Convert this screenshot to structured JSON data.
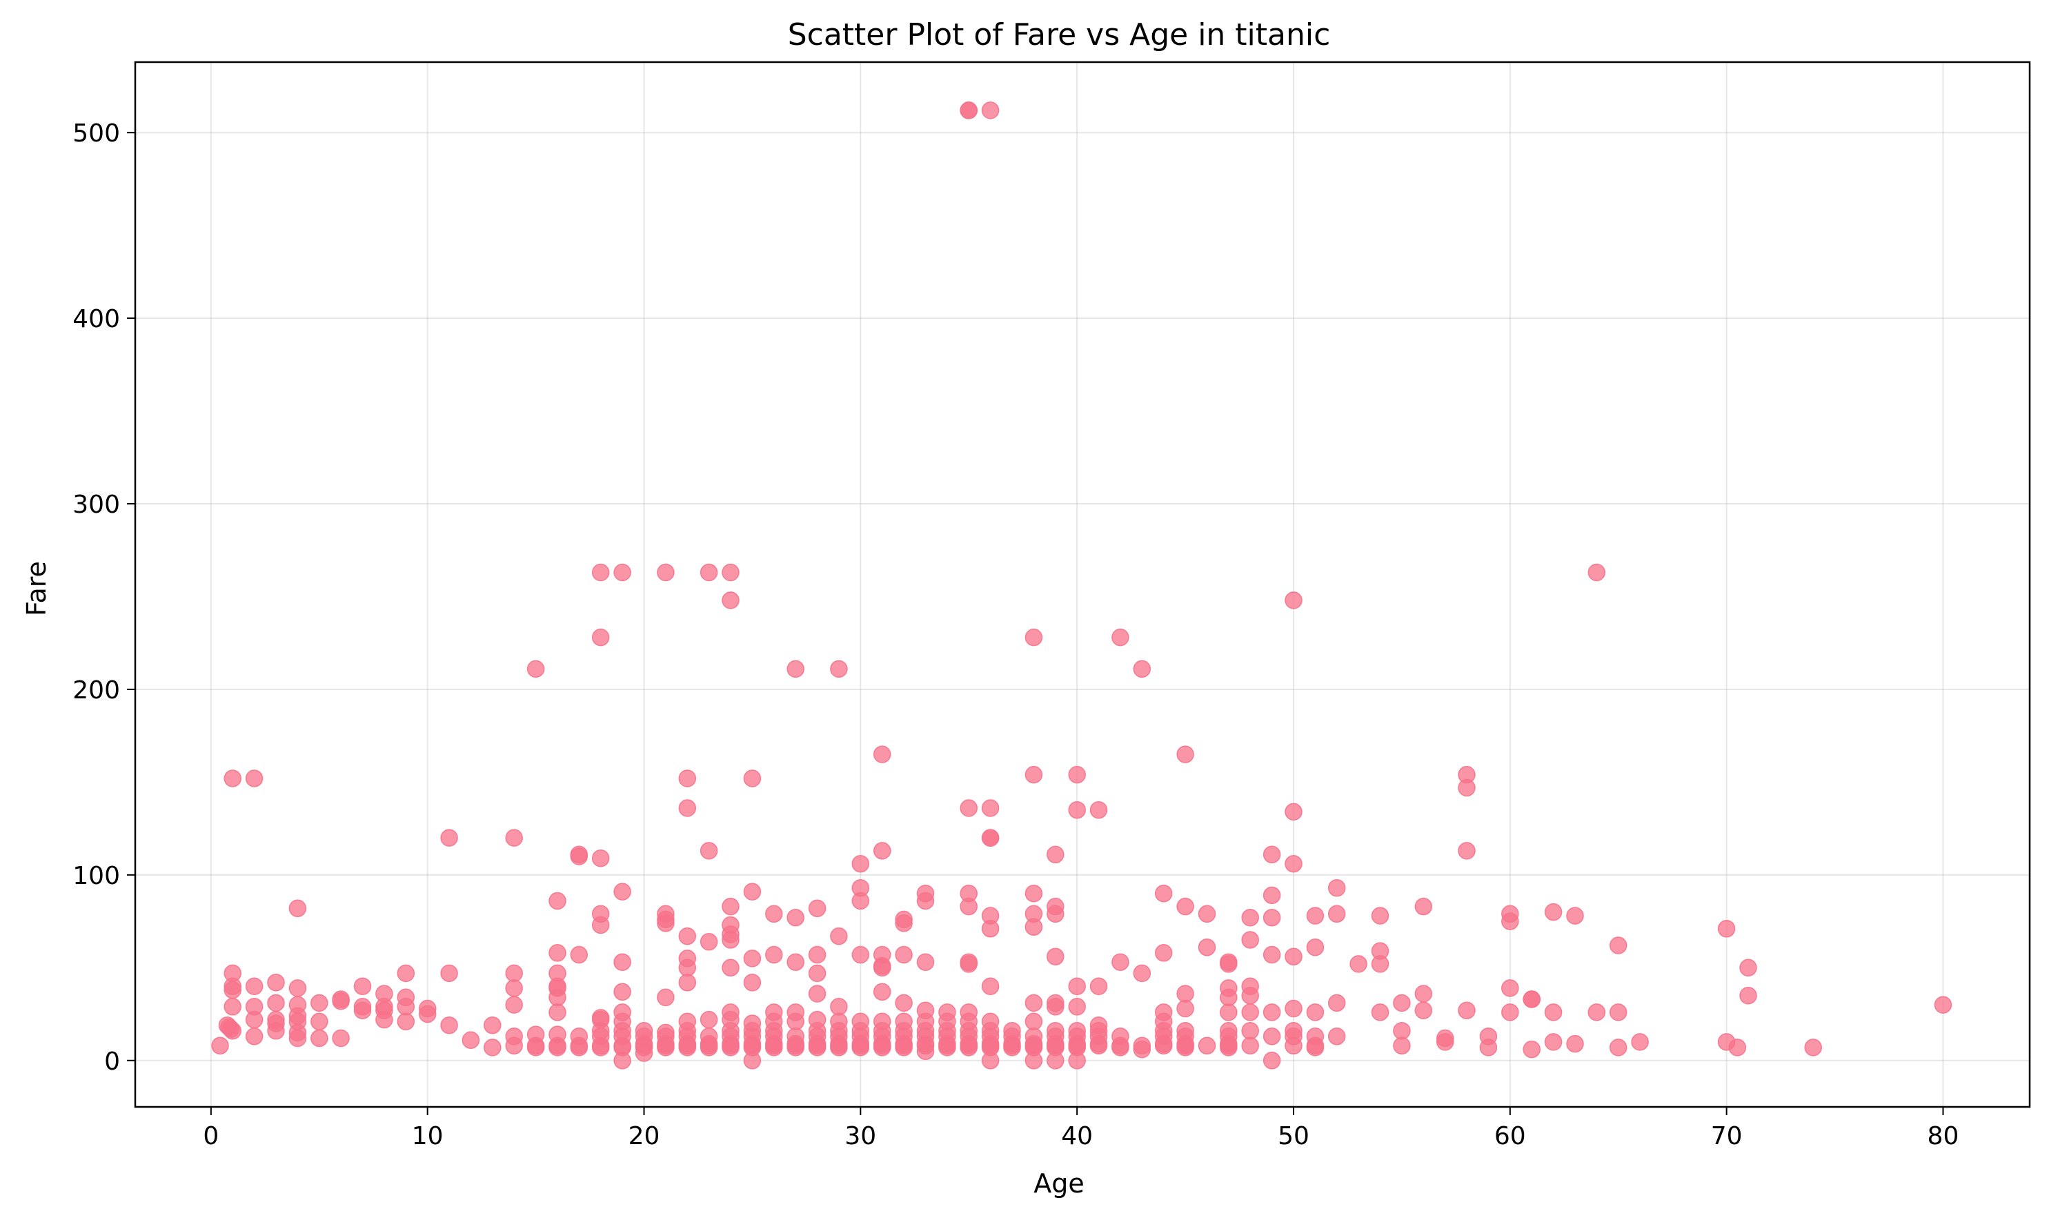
{
  "chart_data": {
    "type": "scatter",
    "title": "Scatter Plot of Fare vs Age in titanic",
    "xlabel": "Age",
    "ylabel": "Fare",
    "xlim": [
      -3.5,
      84
    ],
    "ylim": [
      -25,
      538
    ],
    "x_ticks": [
      0,
      10,
      20,
      30,
      40,
      50,
      60,
      70,
      80
    ],
    "y_ticks": [
      0,
      100,
      200,
      300,
      400,
      500
    ],
    "grid": true,
    "legend": "none",
    "marker_color": "#f77189",
    "marker_opacity": 0.75,
    "points": [
      [
        35,
        512
      ],
      [
        35,
        512
      ],
      [
        36,
        512
      ],
      [
        18,
        263
      ],
      [
        19,
        263
      ],
      [
        21,
        263
      ],
      [
        23,
        263
      ],
      [
        24,
        263
      ],
      [
        64,
        263
      ],
      [
        24,
        248
      ],
      [
        50,
        248
      ],
      [
        18,
        228
      ],
      [
        38,
        228
      ],
      [
        42,
        228
      ],
      [
        15,
        211
      ],
      [
        27,
        211
      ],
      [
        29,
        211
      ],
      [
        43,
        211
      ],
      [
        31,
        165
      ],
      [
        45,
        165
      ],
      [
        1,
        152
      ],
      [
        2,
        152
      ],
      [
        22,
        152
      ],
      [
        25,
        152
      ],
      [
        38,
        154
      ],
      [
        40,
        154
      ],
      [
        58,
        154
      ],
      [
        58,
        147
      ],
      [
        22,
        136
      ],
      [
        35,
        136
      ],
      [
        36,
        136
      ],
      [
        40,
        135
      ],
      [
        41,
        135
      ],
      [
        50,
        134
      ],
      [
        11,
        120
      ],
      [
        14,
        120
      ],
      [
        36,
        120
      ],
      [
        36,
        120
      ],
      [
        23,
        113
      ],
      [
        31,
        113
      ],
      [
        58,
        113
      ],
      [
        17,
        111
      ],
      [
        17,
        110
      ],
      [
        18,
        109
      ],
      [
        39,
        111
      ],
      [
        49,
        111
      ],
      [
        30,
        106
      ],
      [
        50,
        106
      ],
      [
        52,
        93
      ],
      [
        30,
        93
      ],
      [
        19,
        91
      ],
      [
        25,
        91
      ],
      [
        39,
        83
      ],
      [
        44,
        90
      ],
      [
        38,
        90
      ],
      [
        33,
        90
      ],
      [
        35,
        90
      ],
      [
        49,
        89
      ],
      [
        30,
        86
      ],
      [
        33,
        86
      ],
      [
        16,
        86
      ],
      [
        4,
        82
      ],
      [
        28,
        82
      ],
      [
        24,
        83
      ],
      [
        35,
        83
      ],
      [
        45,
        83
      ],
      [
        56,
        83
      ],
      [
        18,
        79
      ],
      [
        21,
        79
      ],
      [
        26,
        79
      ],
      [
        38,
        79
      ],
      [
        46,
        79
      ],
      [
        52,
        79
      ],
      [
        60,
        79
      ],
      [
        62,
        80
      ],
      [
        63,
        78
      ],
      [
        39,
        79
      ],
      [
        54,
        78
      ],
      [
        51,
        78
      ],
      [
        48,
        77
      ],
      [
        49,
        77
      ],
      [
        27,
        77
      ],
      [
        32,
        76
      ],
      [
        36,
        78
      ],
      [
        60,
        75
      ],
      [
        21,
        76
      ],
      [
        21,
        74
      ],
      [
        32,
        74
      ],
      [
        18,
        73
      ],
      [
        24,
        73
      ],
      [
        38,
        72
      ],
      [
        36,
        71
      ],
      [
        70,
        71
      ],
      [
        24,
        68
      ],
      [
        24,
        65
      ],
      [
        29,
        67
      ],
      [
        22,
        67
      ],
      [
        48,
        65
      ],
      [
        23,
        64
      ],
      [
        65,
        62
      ],
      [
        46,
        61
      ],
      [
        51,
        61
      ],
      [
        44,
        58
      ],
      [
        16,
        58
      ],
      [
        17,
        57
      ],
      [
        26,
        57
      ],
      [
        28,
        57
      ],
      [
        30,
        57
      ],
      [
        31,
        57
      ],
      [
        32,
        57
      ],
      [
        39,
        56
      ],
      [
        49,
        57
      ],
      [
        50,
        56
      ],
      [
        22,
        55
      ],
      [
        25,
        55
      ],
      [
        54,
        59
      ],
      [
        35,
        53
      ],
      [
        35,
        52
      ],
      [
        19,
        53
      ],
      [
        27,
        53
      ],
      [
        33,
        53
      ],
      [
        42,
        53
      ],
      [
        47,
        53
      ],
      [
        47,
        52
      ],
      [
        53,
        52
      ],
      [
        54,
        52
      ],
      [
        31,
        51
      ],
      [
        31,
        50
      ],
      [
        22,
        50
      ],
      [
        24,
        50
      ],
      [
        71,
        50
      ],
      [
        1,
        47
      ],
      [
        9,
        47
      ],
      [
        11,
        47
      ],
      [
        14,
        47
      ],
      [
        16,
        47
      ],
      [
        28,
        47
      ],
      [
        43,
        47
      ],
      [
        22,
        42
      ],
      [
        25,
        42
      ],
      [
        3,
        42
      ],
      [
        45,
        36
      ],
      [
        55,
        31
      ],
      [
        7,
        40
      ],
      [
        2,
        40
      ],
      [
        1,
        40
      ],
      [
        1,
        38
      ],
      [
        4,
        39
      ],
      [
        14,
        39
      ],
      [
        16,
        39
      ],
      [
        16,
        40
      ],
      [
        36,
        40
      ],
      [
        40,
        40
      ],
      [
        41,
        40
      ],
      [
        47,
        39
      ],
      [
        48,
        40
      ],
      [
        60,
        39
      ],
      [
        8,
        36
      ],
      [
        9,
        34
      ],
      [
        16,
        34
      ],
      [
        19,
        37
      ],
      [
        21,
        34
      ],
      [
        28,
        36
      ],
      [
        47,
        34
      ],
      [
        31,
        37
      ],
      [
        48,
        35
      ],
      [
        56,
        36
      ],
      [
        71,
        35
      ],
      [
        1,
        29
      ],
      [
        2,
        29
      ],
      [
        3,
        31
      ],
      [
        4,
        30
      ],
      [
        5,
        31
      ],
      [
        6,
        33
      ],
      [
        6,
        32
      ],
      [
        7,
        29
      ],
      [
        7,
        27
      ],
      [
        8,
        29
      ],
      [
        8,
        27
      ],
      [
        9,
        29
      ],
      [
        10,
        28
      ],
      [
        10,
        25
      ],
      [
        14,
        30
      ],
      [
        16,
        26
      ],
      [
        19,
        26
      ],
      [
        24,
        26
      ],
      [
        26,
        26
      ],
      [
        27,
        26
      ],
      [
        29,
        29
      ],
      [
        32,
        31
      ],
      [
        33,
        27
      ],
      [
        34,
        26
      ],
      [
        35,
        26
      ],
      [
        38,
        31
      ],
      [
        39,
        31
      ],
      [
        39,
        29
      ],
      [
        40,
        29
      ],
      [
        44,
        26
      ],
      [
        45,
        28
      ],
      [
        47,
        26
      ],
      [
        48,
        26
      ],
      [
        49,
        26
      ],
      [
        50,
        28
      ],
      [
        51,
        26
      ],
      [
        52,
        31
      ],
      [
        54,
        26
      ],
      [
        56,
        27
      ],
      [
        58,
        27
      ],
      [
        60,
        26
      ],
      [
        61,
        33
      ],
      [
        62,
        26
      ],
      [
        64,
        26
      ],
      [
        65,
        26
      ],
      [
        80,
        30
      ],
      [
        2,
        22
      ],
      [
        3,
        22
      ],
      [
        3,
        20
      ],
      [
        4,
        24
      ],
      [
        4,
        21
      ],
      [
        5,
        21
      ],
      [
        8,
        22
      ],
      [
        9,
        21
      ],
      [
        11,
        19
      ],
      [
        13,
        19
      ],
      [
        18,
        23
      ],
      [
        18,
        22
      ],
      [
        19,
        21
      ],
      [
        21,
        15
      ],
      [
        22,
        21
      ],
      [
        23,
        22
      ],
      [
        24,
        22
      ],
      [
        25,
        20
      ],
      [
        26,
        21
      ],
      [
        27,
        21
      ],
      [
        28,
        22
      ],
      [
        29,
        21
      ],
      [
        30,
        21
      ],
      [
        31,
        21
      ],
      [
        32,
        21
      ],
      [
        33,
        21
      ],
      [
        34,
        21
      ],
      [
        35,
        21
      ],
      [
        36,
        21
      ],
      [
        38,
        21
      ],
      [
        41,
        19
      ],
      [
        44,
        21
      ],
      [
        47,
        16
      ],
      [
        48,
        16
      ],
      [
        50,
        16
      ],
      [
        55,
        16
      ],
      [
        61,
        33
      ],
      [
        1,
        16
      ],
      [
        2,
        13
      ],
      [
        3,
        16
      ],
      [
        4,
        15
      ],
      [
        4,
        12
      ],
      [
        5,
        12
      ],
      [
        6,
        12
      ],
      [
        0.75,
        19
      ],
      [
        0.83,
        18
      ],
      [
        0.92,
        17
      ],
      [
        12,
        11
      ],
      [
        14,
        13
      ],
      [
        15,
        14
      ],
      [
        16,
        14
      ],
      [
        17,
        13
      ],
      [
        18,
        13
      ],
      [
        19,
        13
      ],
      [
        20,
        13
      ],
      [
        21,
        13
      ],
      [
        22,
        13
      ],
      [
        23,
        13
      ],
      [
        24,
        13
      ],
      [
        25,
        13
      ],
      [
        26,
        13
      ],
      [
        27,
        13
      ],
      [
        28,
        13
      ],
      [
        29,
        13
      ],
      [
        30,
        13
      ],
      [
        31,
        13
      ],
      [
        32,
        13
      ],
      [
        33,
        13
      ],
      [
        34,
        13
      ],
      [
        35,
        13
      ],
      [
        36,
        13
      ],
      [
        37,
        13
      ],
      [
        38,
        13
      ],
      [
        39,
        13
      ],
      [
        40,
        13
      ],
      [
        41,
        13
      ],
      [
        42,
        13
      ],
      [
        44,
        13
      ],
      [
        45,
        13
      ],
      [
        47,
        13
      ],
      [
        49,
        13
      ],
      [
        50,
        13
      ],
      [
        51,
        13
      ],
      [
        52,
        13
      ],
      [
        57,
        12
      ],
      [
        59,
        13
      ],
      [
        62,
        10
      ],
      [
        63,
        9
      ],
      [
        66,
        10
      ],
      [
        70,
        10
      ],
      [
        0.42,
        8
      ],
      [
        13,
        7
      ],
      [
        14,
        8
      ],
      [
        15,
        8
      ],
      [
        16,
        8
      ],
      [
        17,
        8
      ],
      [
        18,
        8
      ],
      [
        19,
        8
      ],
      [
        20,
        8
      ],
      [
        21,
        8
      ],
      [
        22,
        8
      ],
      [
        23,
        8
      ],
      [
        24,
        8
      ],
      [
        25,
        8
      ],
      [
        26,
        8
      ],
      [
        27,
        8
      ],
      [
        28,
        8
      ],
      [
        29,
        8
      ],
      [
        30,
        8
      ],
      [
        31,
        8
      ],
      [
        32,
        8
      ],
      [
        33,
        8
      ],
      [
        34,
        8
      ],
      [
        35,
        8
      ],
      [
        36,
        8
      ],
      [
        37,
        8
      ],
      [
        38,
        8
      ],
      [
        39,
        8
      ],
      [
        40,
        8
      ],
      [
        41,
        8
      ],
      [
        42,
        8
      ],
      [
        43,
        8
      ],
      [
        44,
        8
      ],
      [
        45,
        8
      ],
      [
        46,
        8
      ],
      [
        47,
        8
      ],
      [
        48,
        8
      ],
      [
        50,
        8
      ],
      [
        51,
        8
      ],
      [
        55,
        8
      ],
      [
        57,
        10
      ],
      [
        59,
        7
      ],
      [
        61,
        6
      ],
      [
        65,
        7
      ],
      [
        70.5,
        7
      ],
      [
        74,
        7
      ],
      [
        15,
        7
      ],
      [
        16,
        7
      ],
      [
        17,
        7
      ],
      [
        18,
        7
      ],
      [
        19,
        7
      ],
      [
        20,
        7
      ],
      [
        21,
        7
      ],
      [
        22,
        7
      ],
      [
        23,
        7
      ],
      [
        24,
        7
      ],
      [
        25,
        7
      ],
      [
        26,
        7
      ],
      [
        27,
        7
      ],
      [
        28,
        7
      ],
      [
        29,
        7
      ],
      [
        30,
        7
      ],
      [
        31,
        7
      ],
      [
        32,
        7
      ],
      [
        33,
        5
      ],
      [
        34,
        7
      ],
      [
        35,
        7
      ],
      [
        36,
        7
      ],
      [
        37,
        7
      ],
      [
        38,
        7
      ],
      [
        39,
        7
      ],
      [
        40,
        7
      ],
      [
        42,
        7
      ],
      [
        43,
        6
      ],
      [
        45,
        7
      ],
      [
        47,
        7
      ],
      [
        51,
        7
      ],
      [
        19,
        0
      ],
      [
        20,
        4
      ],
      [
        25,
        0
      ],
      [
        36,
        0
      ],
      [
        38,
        0
      ],
      [
        39,
        0
      ],
      [
        40,
        0
      ],
      [
        49,
        0
      ],
      [
        20,
        9
      ],
      [
        21,
        9
      ],
      [
        22,
        9
      ],
      [
        23,
        9
      ],
      [
        24,
        9
      ],
      [
        25,
        9
      ],
      [
        26,
        9
      ],
      [
        27,
        9
      ],
      [
        28,
        9
      ],
      [
        29,
        9
      ],
      [
        30,
        9
      ],
      [
        31,
        9
      ],
      [
        32,
        9
      ],
      [
        33,
        9
      ],
      [
        34,
        9
      ],
      [
        35,
        9
      ],
      [
        36,
        9
      ],
      [
        37,
        9
      ],
      [
        38,
        9
      ],
      [
        39,
        9
      ],
      [
        40,
        9
      ],
      [
        41,
        9
      ],
      [
        44,
        9
      ],
      [
        45,
        9
      ],
      [
        47,
        9
      ],
      [
        18,
        16
      ],
      [
        19,
        16
      ],
      [
        20,
        16
      ],
      [
        22,
        16
      ],
      [
        24,
        16
      ],
      [
        25,
        16
      ],
      [
        26,
        16
      ],
      [
        28,
        16
      ],
      [
        29,
        16
      ],
      [
        30,
        16
      ],
      [
        31,
        16
      ],
      [
        32,
        16
      ],
      [
        33,
        16
      ],
      [
        34,
        16
      ],
      [
        35,
        16
      ],
      [
        36,
        16
      ],
      [
        37,
        16
      ],
      [
        39,
        16
      ],
      [
        40,
        16
      ],
      [
        41,
        16
      ],
      [
        44,
        16
      ],
      [
        45,
        16
      ]
    ]
  }
}
